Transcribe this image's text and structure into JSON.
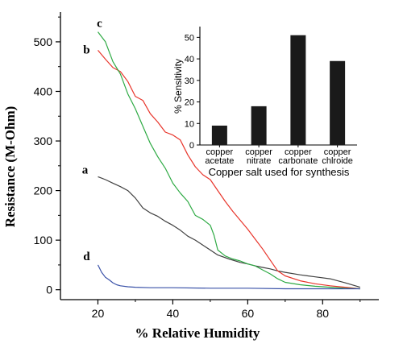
{
  "chart_data": [
    {
      "type": "line",
      "title": "",
      "xlabel": "% Relative Humidity",
      "ylabel": "Resistance (M-Ohm)",
      "xlim": [
        10,
        95
      ],
      "ylim": [
        -20,
        560
      ],
      "xticks": [
        20,
        40,
        60,
        80
      ],
      "yticks": [
        0,
        100,
        200,
        300,
        400,
        500
      ],
      "grid": false,
      "series": [
        {
          "name": "a",
          "color": "#404040",
          "x": [
            20,
            22,
            24,
            26,
            28,
            30,
            32,
            34,
            36,
            38,
            40,
            42,
            44,
            46,
            48,
            50,
            52,
            55,
            58,
            60,
            62,
            64,
            66,
            68,
            70,
            74,
            78,
            82,
            86,
            90
          ],
          "y": [
            228,
            222,
            215,
            208,
            200,
            185,
            165,
            155,
            148,
            138,
            130,
            120,
            108,
            100,
            90,
            80,
            70,
            62,
            55,
            52,
            48,
            45,
            42,
            38,
            35,
            30,
            26,
            22,
            14,
            5
          ]
        },
        {
          "name": "b",
          "color": "#e8352b",
          "x": [
            20,
            22,
            24,
            26,
            28,
            30,
            32,
            34,
            36,
            38,
            40,
            42,
            44,
            46,
            48,
            50,
            52,
            54,
            56,
            58,
            60,
            62,
            64,
            66,
            68,
            70,
            74,
            78,
            82,
            86,
            90
          ],
          "y": [
            483,
            465,
            448,
            440,
            420,
            390,
            382,
            355,
            338,
            318,
            312,
            302,
            272,
            248,
            232,
            222,
            200,
            178,
            158,
            140,
            122,
            102,
            82,
            60,
            38,
            28,
            18,
            12,
            8,
            5,
            2
          ]
        },
        {
          "name": "c",
          "color": "#2eaa44",
          "x": [
            20,
            22,
            24,
            26,
            28,
            30,
            32,
            34,
            36,
            38,
            40,
            42,
            44,
            46,
            48,
            50,
            51,
            52,
            54,
            56,
            58,
            60,
            62,
            64,
            66,
            68,
            70,
            74,
            78,
            82,
            86,
            90
          ],
          "y": [
            520,
            500,
            460,
            435,
            395,
            365,
            330,
            295,
            268,
            245,
            215,
            195,
            178,
            150,
            142,
            130,
            110,
            80,
            68,
            62,
            58,
            52,
            48,
            40,
            32,
            22,
            15,
            10,
            7,
            5,
            3,
            2
          ]
        },
        {
          "name": "d",
          "color": "#3a52a8",
          "x": [
            20,
            21,
            22,
            23,
            24,
            25,
            26,
            28,
            30,
            34,
            40,
            50,
            60,
            70,
            80,
            90
          ],
          "y": [
            50,
            35,
            25,
            20,
            14,
            10,
            8,
            6,
            5,
            4,
            4,
            3,
            3,
            2,
            2,
            2
          ]
        }
      ]
    },
    {
      "type": "bar",
      "title": "",
      "xlabel": "Copper salt used for synthesis",
      "ylabel": "% Sensitivity",
      "ylim": [
        0,
        55
      ],
      "yticks": [
        0,
        10,
        20,
        30,
        40,
        50
      ],
      "categories": [
        [
          "copper",
          "acetate"
        ],
        [
          "copper",
          "nitrate"
        ],
        [
          "copper",
          "carbonate"
        ],
        [
          "copper",
          "chlroide"
        ]
      ],
      "values": [
        9,
        18,
        51,
        39
      ],
      "color": "#1a1a1a",
      "grid": false
    }
  ]
}
